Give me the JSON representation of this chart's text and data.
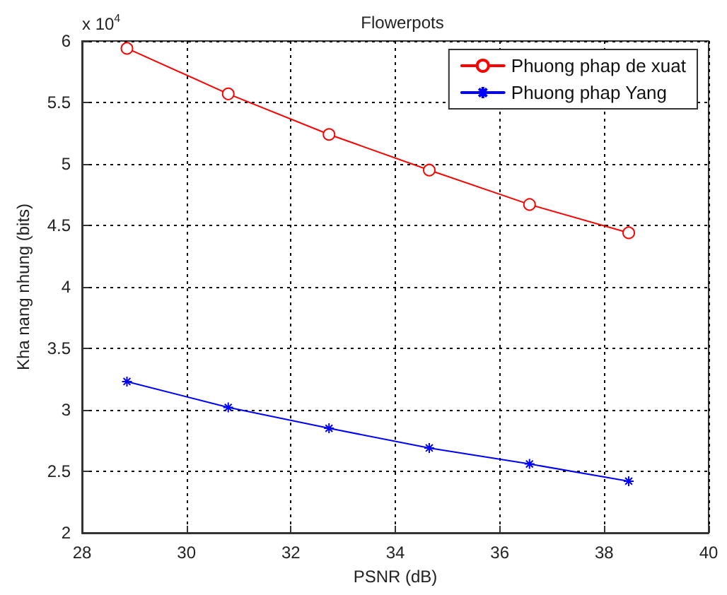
{
  "chart_data": {
    "type": "line",
    "title": "Flowerpots",
    "xlabel": "PSNR (dB)",
    "ylabel": "Kha nang nhung (bits)",
    "annotations": [
      "x 10$^{4}$"
    ],
    "x": [
      28.86,
      30.8,
      32.73,
      34.65,
      36.57,
      38.47
    ],
    "series": [
      {
        "name": "Phuong phap de xuat",
        "color": "#ff0000",
        "marker": "circle",
        "values": [
          5.94,
          5.57,
          5.24,
          4.95,
          4.67,
          4.44
        ]
      },
      {
        "name": "Phuong phap Yang",
        "color": "#0000ff",
        "marker": "cross",
        "values": [
          3.23,
          3.02,
          2.85,
          2.69,
          2.56,
          2.42
        ]
      }
    ],
    "xlim": [
      28,
      40
    ],
    "xticks": [
      28,
      30,
      32,
      34,
      36,
      38,
      40
    ],
    "ylim": [
      2,
      6
    ],
    "yticks": [
      2,
      2.5,
      3,
      3.5,
      4,
      4.5,
      5,
      5.5,
      6
    ],
    "grid": true,
    "legend": "top right",
    "line_style": "solid"
  }
}
